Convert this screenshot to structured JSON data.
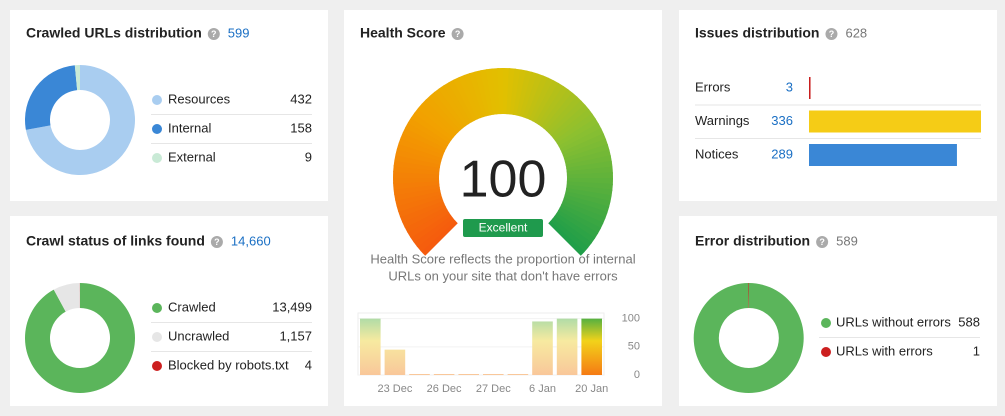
{
  "chart_data": [
    {
      "type": "donut",
      "title": "Crawled URLs distribution",
      "total": 599,
      "categories": [
        "Resources",
        "Internal",
        "External"
      ],
      "values": [
        432,
        158,
        9
      ],
      "colors": [
        "#a9cdf0",
        "#3a87d6",
        "#c9ead6"
      ]
    },
    {
      "type": "donut",
      "title": "Crawl status of links found",
      "total": {
        "value": 14660,
        "label": "14,660"
      },
      "categories": [
        "Crawled",
        "Uncrawled",
        "Blocked by robots.txt"
      ],
      "values": [
        13499,
        1157,
        4
      ],
      "value_labels": [
        "13,499",
        "1,157",
        "4"
      ],
      "colors": [
        "#5bb55b",
        "#e6e6e6",
        "#cc1f1f"
      ]
    },
    {
      "type": "gauge",
      "title": "Health Score",
      "value": 100,
      "ylim": [
        0,
        100
      ],
      "rating": "Excellent",
      "description": [
        "Health Score reflects the proportion of internal",
        "URLs on your site that don't have errors"
      ]
    },
    {
      "type": "bar",
      "categories": [
        null,
        "23 Dec",
        null,
        "26 Dec",
        null,
        "27 Dec",
        null,
        "6 Jan",
        null,
        "20 Jan"
      ],
      "values": [
        100,
        45,
        0,
        0,
        0,
        0,
        0,
        95,
        100,
        100
      ],
      "ylim": [
        0,
        110
      ],
      "yticks": [
        0,
        50,
        100
      ]
    },
    {
      "type": "hbar",
      "title": "Issues distribution",
      "total": 628,
      "categories": [
        "Errors",
        "Warnings",
        "Notices"
      ],
      "values": [
        3,
        336,
        289
      ],
      "colors": [
        "#c81e1e",
        "#f5cc16",
        "#3a87d6"
      ]
    },
    {
      "type": "donut",
      "title": "Error distribution",
      "total": 589,
      "categories": [
        "URLs without errors",
        "URLs with errors"
      ],
      "values": [
        588,
        1
      ],
      "colors": [
        "#5bb55b",
        "#cc1f1f"
      ]
    }
  ]
}
